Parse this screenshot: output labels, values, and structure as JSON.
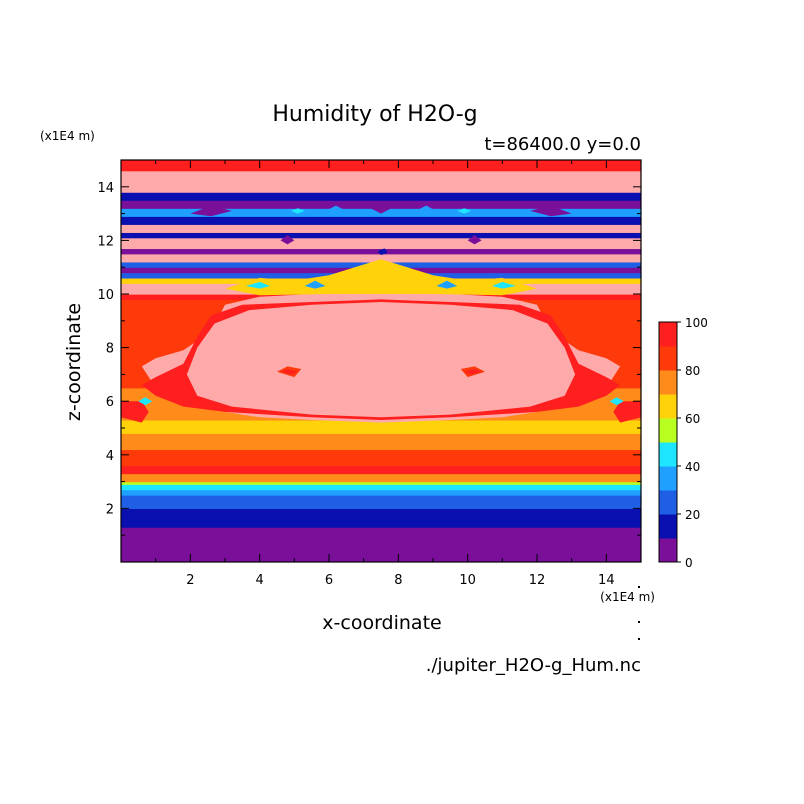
{
  "chart_data": {
    "type": "heatmap",
    "title": "Humidity of H2O-g",
    "subtitle": "t=86400.0 y=0.0",
    "xlabel": "x-coordinate",
    "ylabel": "z-coordinate",
    "x_unit": "(x1E4 m)",
    "y_unit": "(x1E4 m)",
    "xlim": [
      0,
      15
    ],
    "ylim": [
      0,
      15
    ],
    "x_ticks": [
      2,
      4,
      6,
      8,
      10,
      12,
      14
    ],
    "y_ticks": [
      2,
      4,
      6,
      8,
      10,
      12,
      14
    ],
    "grid": false,
    "colorbar": {
      "levels": [
        0,
        10,
        20,
        30,
        40,
        50,
        60,
        70,
        80,
        90,
        100
      ],
      "tick_labels": [
        0,
        20,
        40,
        60,
        80,
        100
      ],
      "colors": [
        "#7a0f9a",
        "#0a10b0",
        "#1f5fe6",
        "#1fa0ff",
        "#1fe6ff",
        "#b9ff1f",
        "#ffd20a",
        "#ff8c1a",
        "#ff3a0a",
        "#ff1f1f",
        "#ffaaaa"
      ]
    },
    "bands": [
      {
        "z": [
          0.0,
          1.3
        ],
        "level": 0
      },
      {
        "z": [
          1.3,
          2.0
        ],
        "level": 1
      },
      {
        "z": [
          2.0,
          2.5
        ],
        "level": 2
      },
      {
        "z": [
          2.5,
          2.7
        ],
        "level": 3
      },
      {
        "z": [
          2.7,
          2.9
        ],
        "level": 4
      },
      {
        "z": [
          2.9,
          3.0
        ],
        "level": 5
      },
      {
        "z": [
          3.0,
          3.3
        ],
        "level": 7
      },
      {
        "z": [
          3.3,
          3.6
        ],
        "level": 9
      },
      {
        "z": [
          3.6,
          4.2
        ],
        "level": 8
      },
      {
        "z": [
          4.2,
          4.8
        ],
        "level": 7
      },
      {
        "z": [
          4.8,
          5.3
        ],
        "level": 6
      },
      {
        "z": [
          5.3,
          6.5
        ],
        "level": 7
      },
      {
        "z": [
          6.5,
          9.8
        ],
        "level": 8
      },
      {
        "z": [
          9.8,
          10.0
        ],
        "level": 9
      },
      {
        "z": [
          10.0,
          10.4
        ],
        "level": 10
      },
      {
        "z": [
          10.4,
          10.6
        ],
        "level": 6
      },
      {
        "z": [
          10.6,
          10.8
        ],
        "level": 2
      },
      {
        "z": [
          10.8,
          11.0
        ],
        "level": 0
      },
      {
        "z": [
          11.0,
          11.2
        ],
        "level": 2
      },
      {
        "z": [
          11.2,
          11.5
        ],
        "level": 10
      },
      {
        "z": [
          11.5,
          11.7
        ],
        "level": 0
      },
      {
        "z": [
          11.7,
          12.1
        ],
        "level": 10
      },
      {
        "z": [
          12.1,
          12.3
        ],
        "level": 1
      },
      {
        "z": [
          12.3,
          12.6
        ],
        "level": 10
      },
      {
        "z": [
          12.6,
          12.9
        ],
        "level": 1
      },
      {
        "z": [
          12.9,
          13.2
        ],
        "level": 3
      },
      {
        "z": [
          13.2,
          13.5
        ],
        "level": 0
      },
      {
        "z": [
          13.5,
          13.8
        ],
        "level": 1
      },
      {
        "z": [
          13.8,
          14.6
        ],
        "level": 10
      },
      {
        "z": [
          14.6,
          15.0
        ],
        "level": 9
      }
    ],
    "regions": [
      {
        "level": 10,
        "points": [
          [
            0.6,
            7.3
          ],
          [
            1.0,
            7.6
          ],
          [
            1.8,
            7.9
          ],
          [
            2.6,
            8.6
          ],
          [
            3.0,
            9.6
          ],
          [
            4.0,
            9.9
          ],
          [
            5.5,
            10.0
          ],
          [
            7.5,
            10.1
          ],
          [
            9.5,
            10.0
          ],
          [
            11.0,
            9.9
          ],
          [
            12.0,
            9.6
          ],
          [
            12.4,
            8.6
          ],
          [
            13.2,
            7.9
          ],
          [
            14.0,
            7.6
          ],
          [
            14.4,
            7.3
          ],
          [
            14.0,
            6.5
          ],
          [
            13.2,
            5.9
          ],
          [
            12.0,
            5.6
          ],
          [
            11.0,
            5.4
          ],
          [
            9.5,
            5.3
          ],
          [
            7.5,
            5.2
          ],
          [
            5.5,
            5.3
          ],
          [
            4.0,
            5.4
          ],
          [
            3.0,
            5.6
          ],
          [
            1.8,
            5.9
          ],
          [
            1.0,
            6.5
          ]
        ]
      },
      {
        "level": 9,
        "points": [
          [
            0.6,
            6.6
          ],
          [
            1.0,
            6.9
          ],
          [
            1.8,
            7.4
          ],
          [
            2.2,
            8.4
          ],
          [
            2.6,
            9.2
          ],
          [
            3.5,
            9.6
          ],
          [
            5.5,
            9.7
          ],
          [
            7.5,
            9.8
          ],
          [
            9.5,
            9.7
          ],
          [
            11.5,
            9.6
          ],
          [
            12.4,
            9.2
          ],
          [
            12.8,
            8.4
          ],
          [
            13.2,
            7.4
          ],
          [
            14.0,
            6.9
          ],
          [
            14.4,
            6.6
          ],
          [
            14.0,
            6.2
          ],
          [
            13.2,
            5.8
          ],
          [
            12.0,
            5.6
          ],
          [
            9.5,
            5.4
          ],
          [
            7.5,
            5.3
          ],
          [
            5.5,
            5.4
          ],
          [
            3.0,
            5.6
          ],
          [
            1.8,
            5.8
          ],
          [
            1.0,
            6.2
          ]
        ]
      },
      {
        "level": 10,
        "points": [
          [
            1.9,
            7.0
          ],
          [
            2.2,
            8.0
          ],
          [
            2.7,
            8.9
          ],
          [
            3.7,
            9.4
          ],
          [
            5.5,
            9.6
          ],
          [
            7.5,
            9.7
          ],
          [
            9.5,
            9.6
          ],
          [
            11.3,
            9.4
          ],
          [
            12.3,
            8.9
          ],
          [
            12.8,
            8.0
          ],
          [
            13.1,
            7.0
          ],
          [
            12.8,
            6.2
          ],
          [
            11.8,
            5.8
          ],
          [
            9.5,
            5.5
          ],
          [
            7.5,
            5.4
          ],
          [
            5.5,
            5.5
          ],
          [
            3.2,
            5.8
          ],
          [
            2.2,
            6.2
          ]
        ]
      },
      {
        "level": 9,
        "points": [
          [
            0.0,
            5.4
          ],
          [
            0.6,
            5.2
          ],
          [
            0.8,
            5.6
          ],
          [
            0.6,
            6.0
          ],
          [
            0.0,
            6.0
          ]
        ]
      },
      {
        "level": 9,
        "points": [
          [
            15.0,
            5.4
          ],
          [
            14.4,
            5.2
          ],
          [
            14.2,
            5.6
          ],
          [
            14.4,
            6.0
          ],
          [
            15.0,
            6.0
          ]
        ]
      },
      {
        "level": 8,
        "points": [
          [
            4.5,
            7.1
          ],
          [
            4.8,
            7.3
          ],
          [
            5.2,
            7.2
          ],
          [
            5.0,
            6.9
          ]
        ]
      },
      {
        "level": 8,
        "points": [
          [
            10.5,
            7.1
          ],
          [
            10.2,
            7.3
          ],
          [
            9.8,
            7.2
          ],
          [
            10.0,
            6.9
          ]
        ]
      },
      {
        "level": 9,
        "points": [
          [
            4.6,
            7.1
          ],
          [
            4.8,
            7.2
          ],
          [
            5.1,
            7.1
          ],
          [
            4.9,
            7.0
          ]
        ]
      },
      {
        "level": 9,
        "points": [
          [
            10.4,
            7.1
          ],
          [
            10.2,
            7.2
          ],
          [
            9.9,
            7.1
          ],
          [
            10.1,
            7.0
          ]
        ]
      },
      {
        "level": 6,
        "points": [
          [
            3.0,
            10.2
          ],
          [
            4.0,
            10.6
          ],
          [
            5.0,
            10.5
          ],
          [
            6.0,
            10.7
          ],
          [
            7.0,
            11.1
          ],
          [
            7.5,
            11.3
          ],
          [
            8.0,
            11.1
          ],
          [
            9.0,
            10.7
          ],
          [
            10.0,
            10.5
          ],
          [
            11.0,
            10.6
          ],
          [
            12.0,
            10.2
          ],
          [
            11.0,
            9.95
          ],
          [
            9.0,
            10.0
          ],
          [
            7.5,
            10.0
          ],
          [
            6.0,
            10.0
          ],
          [
            4.0,
            9.95
          ]
        ]
      },
      {
        "level": 4,
        "points": [
          [
            3.6,
            10.3
          ],
          [
            4.0,
            10.45
          ],
          [
            4.3,
            10.3
          ],
          [
            4.0,
            10.2
          ]
        ]
      },
      {
        "level": 4,
        "points": [
          [
            11.4,
            10.3
          ],
          [
            11.0,
            10.45
          ],
          [
            10.7,
            10.3
          ],
          [
            11.0,
            10.2
          ]
        ]
      },
      {
        "level": 3,
        "points": [
          [
            5.3,
            10.3
          ],
          [
            5.6,
            10.5
          ],
          [
            5.9,
            10.3
          ],
          [
            5.6,
            10.2
          ]
        ]
      },
      {
        "level": 3,
        "points": [
          [
            9.7,
            10.3
          ],
          [
            9.4,
            10.5
          ],
          [
            9.1,
            10.3
          ],
          [
            9.4,
            10.2
          ]
        ]
      },
      {
        "level": 1,
        "points": [
          [
            7.4,
            11.6
          ],
          [
            7.6,
            11.7
          ],
          [
            7.7,
            11.55
          ],
          [
            7.5,
            11.45
          ]
        ]
      },
      {
        "level": 0,
        "points": [
          [
            2.0,
            13.0
          ],
          [
            2.6,
            13.3
          ],
          [
            3.2,
            13.1
          ],
          [
            2.6,
            12.9
          ]
        ]
      },
      {
        "level": 0,
        "points": [
          [
            13.0,
            13.0
          ],
          [
            12.4,
            13.3
          ],
          [
            11.8,
            13.1
          ],
          [
            12.4,
            12.9
          ]
        ]
      },
      {
        "level": 0,
        "points": [
          [
            7.2,
            13.2
          ],
          [
            7.5,
            13.4
          ],
          [
            7.8,
            13.2
          ],
          [
            7.5,
            13.0
          ]
        ]
      },
      {
        "level": 3,
        "points": [
          [
            5.9,
            13.1
          ],
          [
            6.2,
            13.3
          ],
          [
            6.5,
            13.1
          ],
          [
            6.2,
            12.95
          ]
        ]
      },
      {
        "level": 3,
        "points": [
          [
            9.1,
            13.1
          ],
          [
            8.8,
            13.3
          ],
          [
            8.5,
            13.1
          ],
          [
            8.8,
            12.95
          ]
        ]
      },
      {
        "level": 4,
        "points": [
          [
            4.9,
            13.1
          ],
          [
            5.1,
            13.2
          ],
          [
            5.3,
            13.1
          ],
          [
            5.1,
            13.0
          ]
        ]
      },
      {
        "level": 4,
        "points": [
          [
            10.1,
            13.1
          ],
          [
            9.9,
            13.2
          ],
          [
            9.7,
            13.1
          ],
          [
            9.9,
            13.0
          ]
        ]
      },
      {
        "level": 0,
        "points": [
          [
            4.6,
            12.0
          ],
          [
            4.8,
            12.2
          ],
          [
            5.0,
            12.0
          ],
          [
            4.8,
            11.85
          ]
        ]
      },
      {
        "level": 0,
        "points": [
          [
            10.4,
            12.0
          ],
          [
            10.2,
            12.2
          ],
          [
            10.0,
            12.0
          ],
          [
            10.2,
            11.85
          ]
        ]
      },
      {
        "level": 4,
        "points": [
          [
            0.5,
            6.0
          ],
          [
            0.7,
            6.15
          ],
          [
            0.9,
            6.0
          ],
          [
            0.7,
            5.85
          ]
        ]
      },
      {
        "level": 4,
        "points": [
          [
            14.5,
            6.0
          ],
          [
            14.3,
            6.15
          ],
          [
            14.1,
            6.0
          ],
          [
            14.3,
            5.85
          ]
        ]
      },
      {
        "level": 6,
        "points": [
          [
            4.8,
            5.0
          ],
          [
            5.4,
            5.1
          ],
          [
            5.9,
            4.95
          ],
          [
            5.4,
            4.8
          ]
        ]
      },
      {
        "level": 6,
        "points": [
          [
            10.2,
            5.0
          ],
          [
            9.6,
            5.1
          ],
          [
            9.1,
            4.95
          ],
          [
            9.6,
            4.8
          ]
        ]
      }
    ]
  },
  "footer": {
    "filename": "./jupiter_H2O-g_Hum.nc"
  }
}
